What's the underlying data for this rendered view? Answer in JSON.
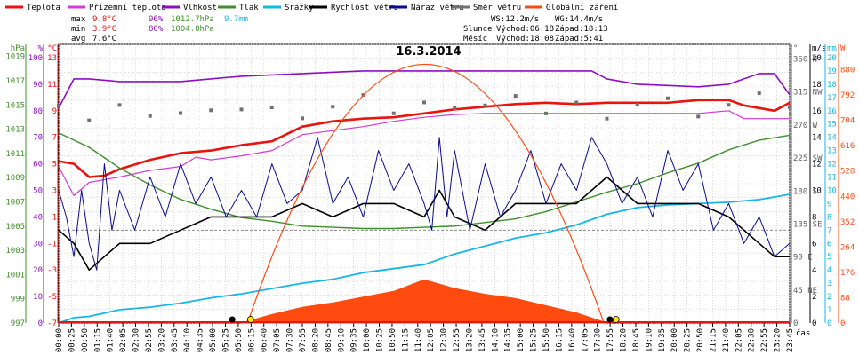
{
  "legend": [
    {
      "label": "Teplota",
      "color": "#e8150f"
    },
    {
      "label": "Přízemní teplota",
      "color": "#d43ad4"
    },
    {
      "label": "Vlhkost",
      "color": "#8d10c0"
    },
    {
      "label": "Tlak",
      "color": "#3f8f2a"
    },
    {
      "label": "Srážky",
      "color": "#17b6e8"
    },
    {
      "label": "Rychlost větru",
      "color": "#000000"
    },
    {
      "label": "Náraz větru",
      "color": "#0a0a90"
    },
    {
      "label": "Směr větru",
      "color": "#707070"
    },
    {
      "label": "Globální záření",
      "color": "#ff4a10"
    }
  ],
  "stats": {
    "max_label": "max",
    "min_label": "min",
    "avg_label": "avg",
    "max_temp": "9.8°C",
    "max_hum": "96%",
    "max_press": "1012.7hPa",
    "max_rain": "9.7mm",
    "min_temp": "3.9°C",
    "min_hum": "80%",
    "min_press": "1004.8hPa",
    "avg_temp": "7.6°C"
  },
  "astro": {
    "ws": "WS:12.2m/s",
    "wg": "WG:14.4m/s",
    "sun_label": "Slunce",
    "sun_rise": "Východ:06:18",
    "sun_set": "Západ:18:13",
    "moon_label": "Měsíc",
    "moon_rise": "Východ:18:08",
    "moon_set": "Západ:5:41"
  },
  "chart_data": {
    "type": "line",
    "title": "16.3.2014",
    "x_unit": "čas",
    "x_ticks": [
      "00:00",
      "00:25",
      "00:50",
      "01:15",
      "01:40",
      "02:05",
      "02:30",
      "02:55",
      "03:20",
      "03:45",
      "04:10",
      "04:35",
      "05:00",
      "05:25",
      "05:50",
      "06:15",
      "06:40",
      "07:05",
      "07:30",
      "07:55",
      "08:20",
      "08:45",
      "09:10",
      "09:35",
      "10:00",
      "10:25",
      "10:50",
      "11:15",
      "11:40",
      "12:05",
      "12:30",
      "12:55",
      "13:20",
      "13:45",
      "14:10",
      "14:35",
      "15:00",
      "15:25",
      "15:50",
      "16:15",
      "16:40",
      "17:05",
      "17:30",
      "17:55",
      "18:20",
      "18:45",
      "19:10",
      "19:35",
      "20:00",
      "20:25",
      "20:50",
      "21:15",
      "21:40",
      "22:05",
      "22:30",
      "22:55",
      "23:20",
      "23:45"
    ],
    "axes": {
      "pressure": {
        "unit": "hPa",
        "color": "#3f8f2a",
        "ticks": [
          "1019",
          "1017",
          "1015",
          "1013",
          "1011",
          "1009",
          "1007",
          "1005",
          "1003",
          "1001",
          "999",
          "997"
        ],
        "range": [
          997,
          1020
        ]
      },
      "humidity": {
        "unit": "%",
        "color": "#8d10c0",
        "ticks": [
          "100",
          "90",
          "80",
          "70",
          "60",
          "50",
          "40",
          "30",
          "20",
          "10",
          "0"
        ],
        "range": [
          0,
          105
        ]
      },
      "temperature": {
        "unit": "°C",
        "color": "#e8150f",
        "ticks": [
          "13",
          "11",
          "9",
          "7",
          "5",
          "3",
          "1",
          "-1",
          "-3",
          "-5",
          "-7"
        ],
        "range": [
          -7,
          14
        ]
      },
      "direction": {
        "unit": "°",
        "color": "#606060",
        "ticks": [
          "360 N",
          "315 NW",
          "270 W",
          "225 SW",
          "180 S",
          "135 SE",
          "90 E",
          "45 NE",
          "0"
        ],
        "range": [
          0,
          380
        ]
      },
      "wind": {
        "unit": "m/s",
        "color": "#000000",
        "ticks": [
          "20",
          "18",
          "16",
          "14",
          "12",
          "10",
          "8",
          "6",
          "4",
          "2",
          "0"
        ],
        "range": [
          0,
          21
        ]
      },
      "rain": {
        "unit": "mm",
        "color": "#17b6e8",
        "ticks": [
          "20",
          "19",
          "18",
          "17",
          "16",
          "15",
          "14",
          "13",
          "12",
          "11",
          "10",
          "9",
          "8",
          "7",
          "6",
          "5",
          "4",
          "3",
          "2",
          "1",
          "0"
        ],
        "range": [
          0,
          21
        ]
      },
      "radiation": {
        "unit": "W",
        "color": "#ff4a10",
        "ticks": [
          "880",
          "792",
          "704",
          "616",
          "528",
          "440",
          "352",
          "264",
          "176",
          "88",
          "0"
        ],
        "range": [
          0,
          968
        ]
      }
    },
    "series": [
      {
        "name": "Teplota",
        "axis": "temperature",
        "x_hours": [
          0,
          0.5,
          1,
          1.5,
          2,
          3,
          4,
          5,
          6,
          7,
          8,
          9,
          10,
          11,
          12,
          13,
          14,
          15,
          16,
          17,
          18,
          19,
          20,
          21,
          22,
          22.5,
          23,
          23.5,
          24
        ],
        "values": [
          5.2,
          5.0,
          4.0,
          4.1,
          4.6,
          5.3,
          5.8,
          6.0,
          6.4,
          6.7,
          7.8,
          8.2,
          8.4,
          8.5,
          8.8,
          9.1,
          9.3,
          9.5,
          9.6,
          9.5,
          9.6,
          9.6,
          9.6,
          9.8,
          9.8,
          9.4,
          9.2,
          9.0,
          9.6
        ]
      },
      {
        "name": "Přízemní teplota",
        "axis": "temperature",
        "x_hours": [
          0,
          0.5,
          1,
          2,
          3,
          4,
          4.5,
          5,
          6,
          7,
          8,
          9,
          10,
          11,
          12,
          13,
          14,
          15,
          16,
          17,
          18,
          19,
          20,
          21,
          22,
          22.5,
          23,
          24
        ],
        "values": [
          4.8,
          2.6,
          3.6,
          4.0,
          4.5,
          4.8,
          5.5,
          5.3,
          5.6,
          6.0,
          7.2,
          7.5,
          7.8,
          8.2,
          8.5,
          8.7,
          8.8,
          8.8,
          8.8,
          8.8,
          8.8,
          8.8,
          8.8,
          8.8,
          9.0,
          8.4,
          8.4,
          8.4
        ]
      },
      {
        "name": "Vlhkost",
        "axis": "humidity",
        "x_hours": [
          0,
          0.5,
          1,
          2,
          4,
          6,
          8,
          10,
          12,
          14,
          16,
          17.5,
          18,
          18.5,
          19,
          21,
          22,
          22.5,
          23,
          23.5,
          24
        ],
        "values": [
          81,
          92,
          92,
          91,
          91,
          93,
          94,
          95,
          95,
          95,
          95,
          95,
          92,
          91,
          90,
          89,
          90,
          92,
          94,
          94,
          86
        ]
      },
      {
        "name": "Tlak",
        "axis": "pressure",
        "x_hours": [
          0,
          1,
          2,
          3,
          4,
          5,
          6,
          7,
          8,
          9,
          10,
          11,
          12,
          13,
          14,
          15,
          16,
          17,
          18,
          19,
          20,
          21,
          22,
          23,
          24
        ],
        "values": [
          1012.7,
          1011.5,
          1009.8,
          1008.4,
          1007.2,
          1006.4,
          1005.7,
          1005.4,
          1005.0,
          1004.9,
          1004.8,
          1004.8,
          1004.9,
          1005.0,
          1005.3,
          1005.6,
          1006.2,
          1007.0,
          1007.8,
          1008.5,
          1009.4,
          1010.2,
          1011.3,
          1012.1,
          1012.5
        ]
      },
      {
        "name": "Srážky",
        "axis": "rain",
        "x_hours": [
          0,
          0.5,
          1,
          2,
          3,
          4,
          5,
          6,
          7,
          8,
          9,
          10,
          11,
          12,
          13,
          14,
          15,
          16,
          17,
          18,
          19,
          20,
          21,
          22,
          23,
          24
        ],
        "values": [
          0,
          0.4,
          0.5,
          1.0,
          1.2,
          1.5,
          1.9,
          2.2,
          2.6,
          3.0,
          3.3,
          3.8,
          4.1,
          4.4,
          5.2,
          5.8,
          6.4,
          6.8,
          7.4,
          8.2,
          8.7,
          8.9,
          9.0,
          9.1,
          9.3,
          9.7
        ]
      },
      {
        "name": "Rychlost větru",
        "axis": "wind",
        "x_hours": [
          0,
          0.5,
          1,
          1.5,
          2,
          3,
          4,
          5,
          6,
          7,
          8,
          9,
          10,
          11,
          12,
          12.5,
          13,
          14,
          15,
          16,
          17,
          18,
          19,
          20,
          21,
          22,
          23,
          23.5,
          24
        ],
        "values": [
          7,
          6,
          4,
          5,
          6,
          6,
          7,
          8,
          8,
          8,
          9,
          8,
          9,
          9,
          8,
          10,
          8,
          7,
          9,
          9,
          9,
          11,
          9,
          9,
          9,
          8,
          6,
          5,
          5
        ]
      },
      {
        "name": "Náraz větru",
        "axis": "wind",
        "x_hours": [
          0,
          0.25,
          0.5,
          0.75,
          1,
          1.25,
          1.5,
          1.75,
          2,
          2.5,
          3,
          3.5,
          4,
          4.5,
          5,
          5.5,
          6,
          6.5,
          7,
          7.5,
          8,
          8.5,
          9,
          9.5,
          10,
          10.5,
          11,
          11.5,
          12,
          12.25,
          12.5,
          12.75,
          13,
          13.5,
          14,
          14.5,
          15,
          15.5,
          16,
          16.5,
          17,
          17.5,
          18,
          18.5,
          19,
          19.5,
          20,
          20.5,
          21,
          21.5,
          22,
          22.5,
          23,
          23.5,
          24
        ],
        "values": [
          10,
          8,
          5,
          10,
          6,
          4,
          12,
          7,
          10,
          7,
          11,
          8,
          12,
          9,
          11,
          8,
          10,
          8,
          12,
          9,
          10,
          14,
          9,
          11,
          8,
          13,
          10,
          12,
          9,
          7,
          14,
          8,
          13,
          7,
          12,
          8,
          10,
          13,
          9,
          12,
          10,
          14,
          12,
          9,
          11,
          8,
          13,
          10,
          12,
          7,
          9,
          6,
          8,
          5,
          6
        ]
      },
      {
        "name": "Směr větru",
        "axis": "direction",
        "x_hours": [
          0,
          1,
          2,
          3,
          4,
          5,
          6,
          7,
          8,
          9,
          10,
          11,
          12,
          13,
          14,
          15,
          16,
          17,
          18,
          19,
          20,
          21,
          22,
          23,
          24
        ],
        "values": [
          283,
          280,
          290,
          292,
          285,
          278,
          296,
          288,
          290,
          295,
          300,
          292,
          296,
          305,
          298,
          300,
          293,
          297,
          292,
          300,
          298,
          290,
          295,
          300,
          298
        ]
      },
      {
        "name": "Globální záření",
        "axis": "radiation",
        "x_hours": [
          6,
          7,
          8,
          9,
          10,
          11,
          12,
          13,
          14,
          15,
          16,
          17,
          18
        ],
        "values": [
          0,
          30,
          55,
          70,
          90,
          110,
          150,
          120,
          100,
          85,
          60,
          35,
          0
        ]
      }
    ],
    "grid": true,
    "legend_position": "top"
  }
}
